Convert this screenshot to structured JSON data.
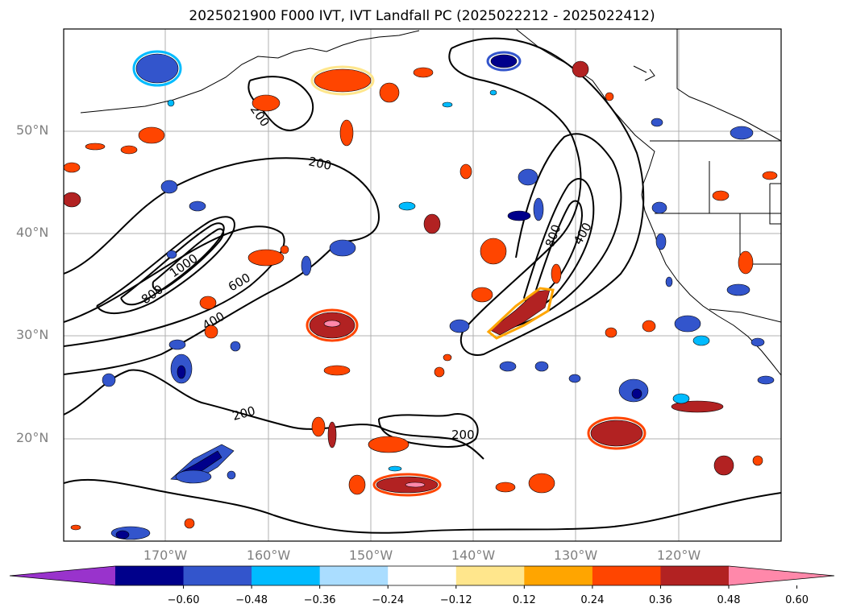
{
  "title": "2025021900 F000 IVT, IVT Landfall PC (2025022212 - 2025022412)",
  "map": {
    "lat_labels": [
      "50°N",
      "40°N",
      "30°N",
      "20°N"
    ],
    "lon_labels": [
      "170°W",
      "160°W",
      "150°W",
      "140°W",
      "130°W",
      "120°W"
    ],
    "contour_labels": [
      "200",
      "200",
      "200",
      "200",
      "400",
      "400",
      "600",
      "800",
      "800",
      "1000"
    ]
  },
  "colorbar": {
    "colors": [
      "#9933cc",
      "#00008b",
      "#3355cc",
      "#00bbff",
      "#aaddff",
      "#ffffff",
      "#ffe68c",
      "#ffa500",
      "#ff4500",
      "#b22222",
      "#ff88aa"
    ],
    "tick_labels": [
      "−0.60",
      "−0.48",
      "−0.36",
      "−0.24",
      "−0.12",
      "0.12",
      "0.24",
      "0.36",
      "0.48",
      "0.60"
    ]
  }
}
